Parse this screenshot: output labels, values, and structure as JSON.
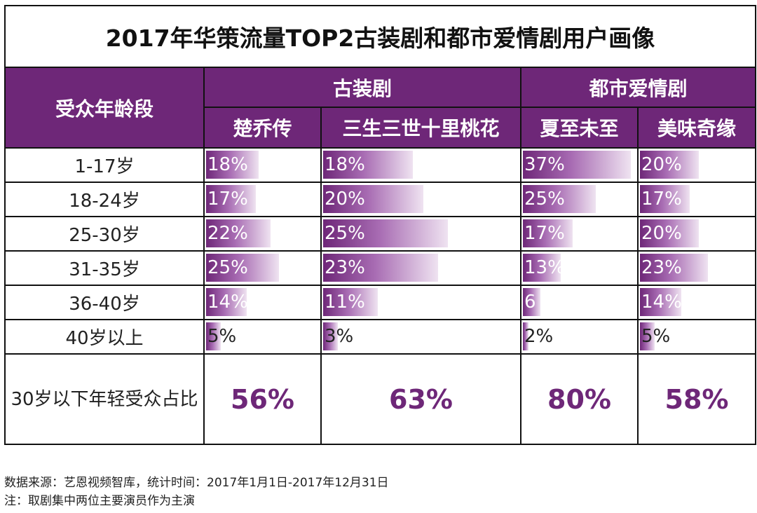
{
  "chart_data": {
    "type": "table",
    "title": "2017年华策流量TOP2古装剧和都市爱情剧用户画像",
    "row_header_label": "受众年龄段",
    "groups": [
      {
        "label": "古装剧",
        "shows": [
          "楚乔传",
          "三生三世十里桃花"
        ]
      },
      {
        "label": "都市爱情剧",
        "shows": [
          "夏至未至",
          "美味奇缘"
        ]
      }
    ],
    "age_groups": [
      "1-17岁",
      "18-24岁",
      "25-30岁",
      "31-35岁",
      "36-40岁",
      "40岁以上"
    ],
    "series": [
      {
        "name": "楚乔传",
        "values": [
          18,
          17,
          22,
          25,
          14,
          5
        ],
        "labels": [
          "18%",
          "17%",
          "22%",
          "25%",
          "14%",
          "5%"
        ]
      },
      {
        "name": "三生三世十里桃花",
        "values": [
          18,
          20,
          25,
          23,
          11,
          3
        ],
        "labels": [
          "18%",
          "20%",
          "25%",
          "23%",
          "11%",
          "3%"
        ]
      },
      {
        "name": "夏至未至",
        "values": [
          37,
          25,
          17,
          13,
          6,
          2
        ],
        "labels": [
          "37%",
          "25%",
          "17%",
          "13%",
          "6",
          "2%"
        ]
      },
      {
        "name": "美味奇缘",
        "values": [
          20,
          17,
          20,
          23,
          14,
          5
        ],
        "labels": [
          "20%",
          "17%",
          "20%",
          "23%",
          "14%",
          "5%"
        ]
      }
    ],
    "summary": {
      "label": "30岁以下年轻受众占比",
      "values": [
        "56%",
        "63%",
        "80%",
        "58%"
      ]
    },
    "colors": {
      "accent": "#6e2778",
      "bar_light": "#efe3f1"
    }
  },
  "footer": {
    "source": "数据来源：艺恩视频智库，统计时间：2017年1月1日-2017年12月31日",
    "note": "注：取剧集中两位主要演员作为主演"
  }
}
